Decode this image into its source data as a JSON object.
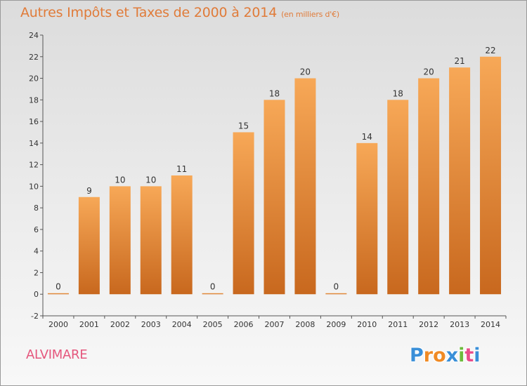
{
  "header": {
    "title": "Autres Impôts et Taxes de 2000 à 2014",
    "unit": "(en milliers d'€)"
  },
  "footer": {
    "town": "ALVIMARE",
    "logo_letters": [
      "P",
      "r",
      "o",
      "x",
      "i",
      "t",
      "i"
    ]
  },
  "colors": {
    "title": "#e07b39",
    "town": "#e5577d",
    "bar_light": "#f7a857",
    "bar_dark": "#c8681e",
    "logo": [
      "#3a8fd8",
      "#f08a24",
      "#f08a24",
      "#3a8fd8",
      "#6cbb3c",
      "#e94d8a",
      "#3a8fd8"
    ]
  },
  "chart_data": {
    "type": "bar",
    "title": "Autres Impôts et Taxes de 2000 à 2014",
    "subtitle": "(en milliers d'€)",
    "categories": [
      "2000",
      "2001",
      "2002",
      "2003",
      "2004",
      "2005",
      "2006",
      "2007",
      "2008",
      "2009",
      "2010",
      "2011",
      "2012",
      "2013",
      "2014"
    ],
    "values": [
      0,
      9,
      10,
      10,
      11,
      0,
      15,
      18,
      20,
      0,
      14,
      18,
      20,
      21,
      22
    ],
    "ylim": [
      -2,
      24
    ],
    "yticks": [
      -2,
      0,
      2,
      4,
      6,
      8,
      10,
      12,
      14,
      16,
      18,
      20,
      22,
      24
    ],
    "grid": false,
    "legend": "none"
  }
}
